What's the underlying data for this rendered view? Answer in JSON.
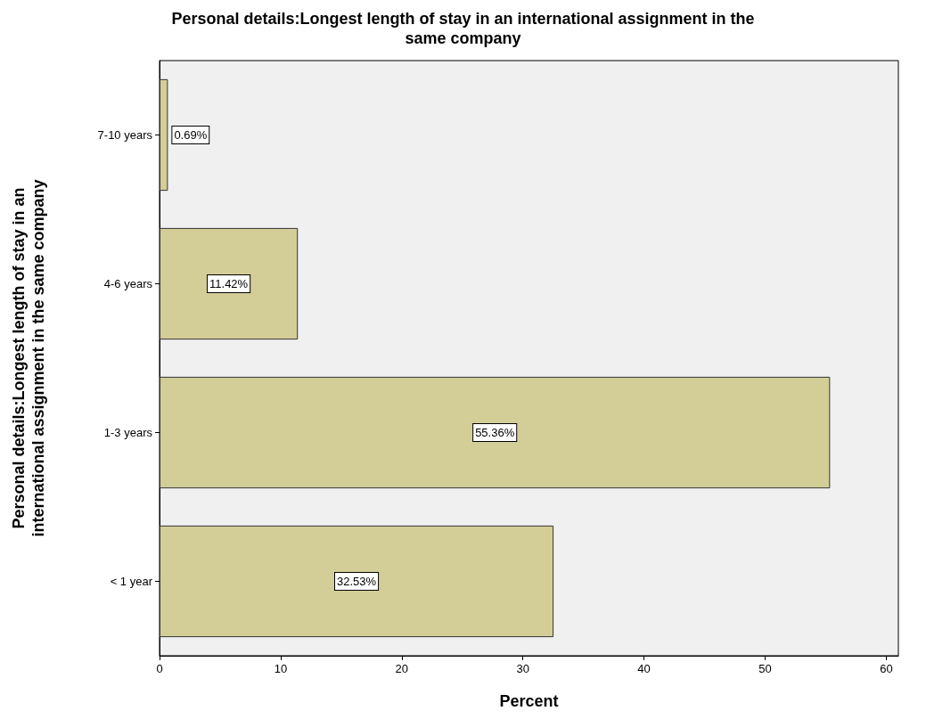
{
  "chart_data": {
    "type": "bar",
    "orientation": "horizontal",
    "title": "Personal details:Longest length of stay in an international assignment in the\nsame company",
    "xlabel": "Percent",
    "ylabel": "Personal details:Longest length of stay in an\ninternational assignment in the same company",
    "categories": [
      "7-10 years",
      "4-6 years",
      "1-3 years",
      "< 1 year"
    ],
    "values": [
      0.69,
      11.42,
      55.36,
      32.53
    ],
    "value_labels": [
      "0.69%",
      "11.42%",
      "55.36%",
      "32.53%"
    ],
    "color": "#d3ce97",
    "xlim": [
      0,
      61
    ],
    "xticks": [
      0,
      10,
      20,
      30,
      40,
      50,
      60
    ],
    "grid": false
  }
}
